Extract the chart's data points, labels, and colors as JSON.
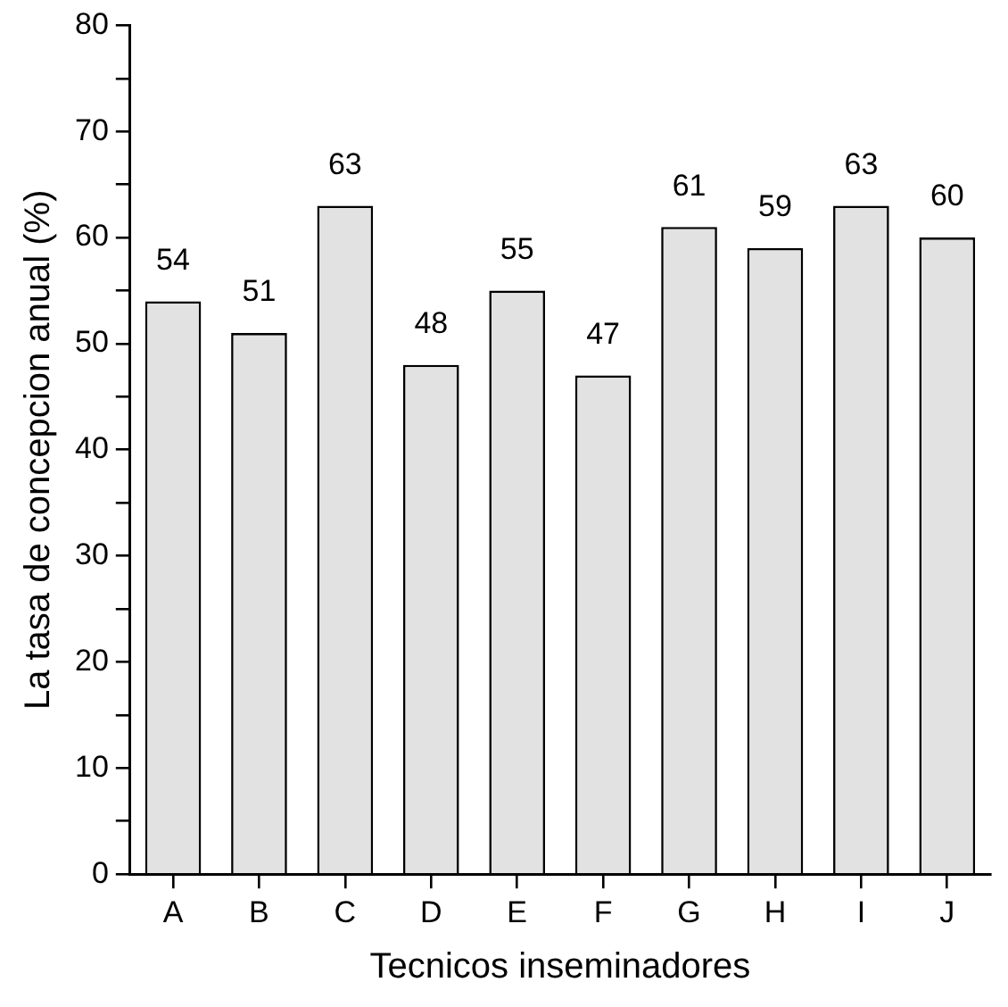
{
  "chart_data": {
    "type": "bar",
    "xlabel": "Tecnicos inseminadores",
    "ylabel": "La tasa de concepcion anual (%)",
    "categories": [
      "A",
      "B",
      "C",
      "D",
      "E",
      "F",
      "G",
      "H",
      "I",
      "J"
    ],
    "values": [
      54,
      51,
      63,
      48,
      55,
      47,
      61,
      59,
      63,
      60
    ],
    "color": "#e2e2e2",
    "ylim": [
      0,
      80
    ],
    "yticks": [
      0,
      {
        "value": 5,
        "label": null
      },
      10,
      {
        "value": 15,
        "label": null
      },
      20,
      {
        "value": 25,
        "label": null
      },
      30,
      {
        "value": 35,
        "label": null
      },
      40,
      {
        "value": 45,
        "label": null
      },
      50,
      {
        "value": 55,
        "label": null
      },
      60,
      {
        "value": 65,
        "label": null
      },
      70,
      {
        "value": 75,
        "label": null
      },
      80
    ],
    "grid": false,
    "legend": false,
    "data_labels": true
  }
}
